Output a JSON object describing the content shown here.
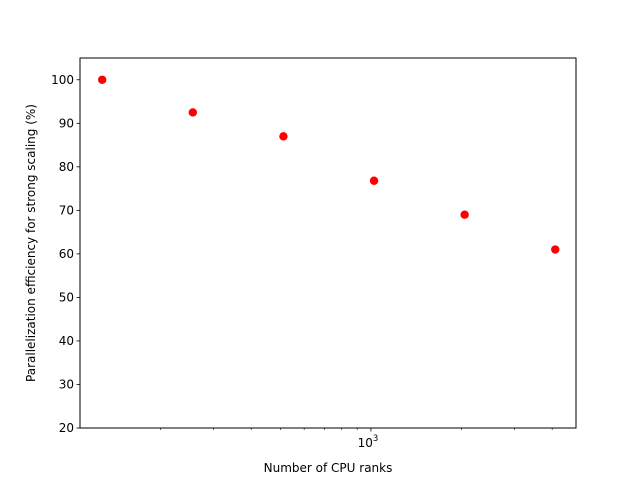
{
  "chart_data": {
    "type": "scatter",
    "title": "",
    "xlabel": "Number of CPU ranks",
    "ylabel": "Parallelization efficiency for strong scaling (%)",
    "xscale": "log",
    "xlim": [
      108,
      4800
    ],
    "ylim": [
      20,
      105
    ],
    "xticks": [
      {
        "value": 1000,
        "base": "10",
        "exp": "3"
      }
    ],
    "yticks": [
      20,
      30,
      40,
      50,
      60,
      70,
      80,
      90,
      100
    ],
    "grid": false,
    "legend": "none",
    "marker_color": "#ff0000",
    "series": [
      {
        "points": [
          {
            "x": 128,
            "y": 100.0
          },
          {
            "x": 256,
            "y": 92.5
          },
          {
            "x": 512,
            "y": 87.0
          },
          {
            "x": 1024,
            "y": 76.8
          },
          {
            "x": 2048,
            "y": 69.0
          },
          {
            "x": 4096,
            "y": 61.0
          }
        ]
      }
    ]
  }
}
